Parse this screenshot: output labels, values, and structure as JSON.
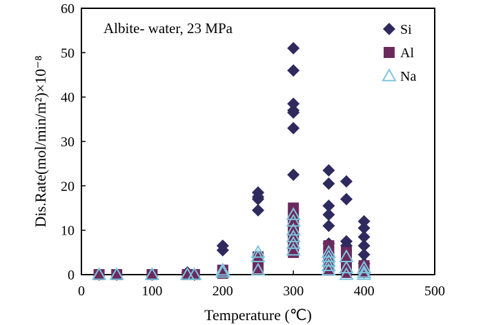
{
  "chart_data": {
    "type": "scatter",
    "annotation": "Albite- water, 23 MPa",
    "xlabel": "Temperature (℃)",
    "ylabel": "Dis.Rate(mol/min/m²)×10⁻⁸",
    "xlim": [
      0,
      500
    ],
    "ylim": [
      0,
      60
    ],
    "xticks": [
      0,
      100,
      200,
      300,
      400,
      500
    ],
    "yticks": [
      0,
      10,
      20,
      30,
      40,
      50,
      60
    ],
    "grid": false,
    "legend_position": "top-right",
    "series": [
      {
        "name": "Si",
        "marker": "diamond",
        "color": "#2e2a5e",
        "points": [
          [
            25,
            0
          ],
          [
            50,
            0
          ],
          [
            100,
            0
          ],
          [
            150,
            0.5
          ],
          [
            160,
            0
          ],
          [
            200,
            6.5
          ],
          [
            200,
            5.5
          ],
          [
            250,
            18.5
          ],
          [
            250,
            17.5
          ],
          [
            250,
            17
          ],
          [
            250,
            14.5
          ],
          [
            300,
            51
          ],
          [
            300,
            46
          ],
          [
            300,
            38.5
          ],
          [
            300,
            37
          ],
          [
            300,
            36.5
          ],
          [
            300,
            33
          ],
          [
            300,
            22.5
          ],
          [
            350,
            23.5
          ],
          [
            350,
            20.5
          ],
          [
            350,
            15.5
          ],
          [
            350,
            13.5
          ],
          [
            350,
            11
          ],
          [
            350,
            7
          ],
          [
            375,
            21
          ],
          [
            375,
            17
          ],
          [
            375,
            7.5
          ],
          [
            375,
            6.5
          ],
          [
            400,
            12
          ],
          [
            400,
            10.5
          ],
          [
            400,
            8.5
          ],
          [
            400,
            6.5
          ],
          [
            400,
            4.5
          ],
          [
            400,
            2.5
          ],
          [
            400,
            0.5
          ]
        ]
      },
      {
        "name": "Al",
        "marker": "square",
        "color": "#6b2a5c",
        "points": [
          [
            25,
            0
          ],
          [
            50,
            0
          ],
          [
            100,
            0
          ],
          [
            150,
            0
          ],
          [
            160,
            0
          ],
          [
            200,
            1
          ],
          [
            200,
            0.3
          ],
          [
            250,
            4
          ],
          [
            250,
            2.5
          ],
          [
            250,
            1.5
          ],
          [
            300,
            15
          ],
          [
            300,
            13.5
          ],
          [
            300,
            12
          ],
          [
            300,
            11
          ],
          [
            300,
            9.5
          ],
          [
            300,
            8
          ],
          [
            300,
            6.5
          ],
          [
            300,
            5
          ],
          [
            350,
            6.5
          ],
          [
            350,
            5
          ],
          [
            350,
            4
          ],
          [
            350,
            3
          ],
          [
            350,
            2
          ],
          [
            350,
            1
          ],
          [
            375,
            5
          ],
          [
            375,
            3
          ],
          [
            375,
            1.5
          ],
          [
            375,
            0.5
          ],
          [
            400,
            2
          ],
          [
            400,
            1
          ],
          [
            400,
            0.5
          ]
        ]
      },
      {
        "name": "Na",
        "marker": "triangle",
        "color": "#7ec6de",
        "points": [
          [
            25,
            0
          ],
          [
            50,
            0
          ],
          [
            100,
            0
          ],
          [
            150,
            0
          ],
          [
            160,
            0
          ],
          [
            200,
            1
          ],
          [
            200,
            0.5
          ],
          [
            250,
            5
          ],
          [
            250,
            4
          ],
          [
            250,
            1
          ],
          [
            300,
            13.5
          ],
          [
            300,
            12
          ],
          [
            300,
            10
          ],
          [
            300,
            8.5
          ],
          [
            300,
            7
          ],
          [
            300,
            5.5
          ],
          [
            350,
            5
          ],
          [
            350,
            4
          ],
          [
            350,
            3
          ],
          [
            350,
            2
          ],
          [
            350,
            1
          ],
          [
            375,
            4
          ],
          [
            375,
            1.5
          ],
          [
            375,
            0
          ],
          [
            400,
            1.5
          ],
          [
            400,
            0.5
          ],
          [
            400,
            0
          ]
        ]
      }
    ]
  }
}
